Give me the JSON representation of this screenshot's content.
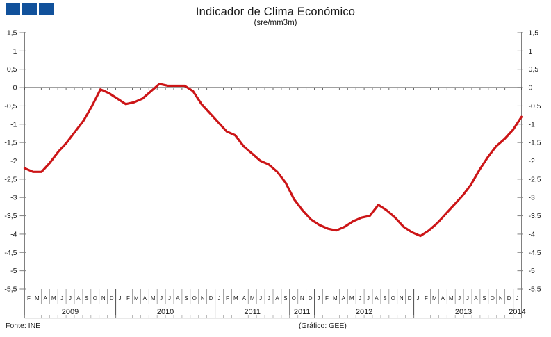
{
  "logo": {
    "square_color": "#11519b",
    "square_count": 3
  },
  "footer": {
    "fonte": "Fonte: INE",
    "grafico": "(Gráfico: GEE)"
  },
  "chart_data": {
    "type": "line",
    "title": "Indicador de Clima Económico",
    "subtitle": "(sre/mm3m)",
    "ylabel": "",
    "xlabel": "",
    "ylim": [
      -5.5,
      1.5
    ],
    "ytick_step": 0.5,
    "ytick_labels": [
      "1,5",
      "1",
      "0,5",
      "0",
      "-0,5",
      "-1",
      "-1,5",
      "-2",
      "-2,5",
      "-3",
      "-3,5",
      "-4",
      "-4,5",
      "-5",
      "-5,5"
    ],
    "grid": "none",
    "zero_line": true,
    "line_color": "#cc1517",
    "axis_color": "#808080",
    "text_color": "#1a1a1a",
    "legend": "none",
    "year_groups": [
      {
        "label": "2009",
        "months": [
          "F",
          "M",
          "A",
          "M",
          "J",
          "J",
          "A",
          "S",
          "O",
          "N",
          "D"
        ],
        "values": [
          -2.2,
          -2.3,
          -2.3,
          -2.05,
          -1.75,
          -1.5,
          -1.2,
          -0.9,
          -0.5,
          -0.05,
          -0.15
        ]
      },
      {
        "label": "2010",
        "months": [
          "J",
          "F",
          "M",
          "A",
          "M",
          "J",
          "J",
          "A",
          "S",
          "O",
          "N",
          "D"
        ],
        "values": [
          -0.3,
          -0.45,
          -0.4,
          -0.3,
          -0.1,
          0.1,
          0.05,
          0.05,
          0.05,
          -0.1,
          -0.45,
          -0.7
        ]
      },
      {
        "label": "2011",
        "months": [
          "J",
          "F",
          "M",
          "A",
          "M",
          "J",
          "J",
          "A",
          "S"
        ],
        "values": [
          -0.95,
          -1.2,
          -1.3,
          -1.6,
          -1.8,
          -2.0,
          -2.1,
          -2.3,
          -2.6
        ]
      },
      {
        "label": "2011",
        "months": [
          "O",
          "N",
          "D"
        ],
        "values": [
          -3.05,
          -3.35,
          -3.6
        ]
      },
      {
        "label": "2012",
        "months": [
          "J",
          "F",
          "M",
          "A",
          "M",
          "J",
          "J",
          "A",
          "S",
          "O",
          "N",
          "D"
        ],
        "values": [
          -3.75,
          -3.85,
          -3.9,
          -3.8,
          -3.65,
          -3.55,
          -3.5,
          -3.2,
          -3.35,
          -3.55,
          -3.8,
          -3.95
        ]
      },
      {
        "label": "2013",
        "months": [
          "J",
          "F",
          "M",
          "A",
          "M",
          "J",
          "J",
          "A",
          "S",
          "O",
          "N",
          "D"
        ],
        "values": [
          -4.05,
          -3.9,
          -3.7,
          -3.45,
          -3.2,
          -2.95,
          -2.65,
          -2.25,
          -1.9,
          -1.6,
          -1.4,
          -1.15
        ]
      },
      {
        "label": "2014",
        "months": [
          "J"
        ],
        "values": [
          -0.8
        ]
      }
    ]
  }
}
